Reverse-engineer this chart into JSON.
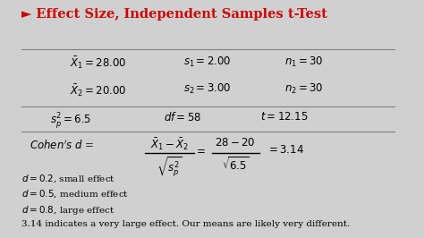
{
  "title": "► Effect Size, Independent Samples t-Test",
  "title_color": "#cc0000",
  "bg_color": "#d0d0d0",
  "content_bg": "#ececec",
  "line1_col1": "$\\bar{X}_1 = 28.00$",
  "line1_col2": "$s_1 = 2.00$",
  "line1_col3": "$n_1 = 30$",
  "line2_col1": "$\\bar{X}_2 = 20.00$",
  "line2_col2": "$s_2 = 3.00$",
  "line2_col3": "$n_2 = 30$",
  "line3_col1": "$s_p^2 = 6.5$",
  "line3_col2": "$df = 58$",
  "line3_col3": "$t  =  12.15$",
  "effect1": "$d = 0.2$, small effect",
  "effect2": "$d = 0.5$, medium effect",
  "effect3": "$d = 0.8$, large effect",
  "conclusion": "3.14 indicates a very large effect. Our means are likely very different."
}
